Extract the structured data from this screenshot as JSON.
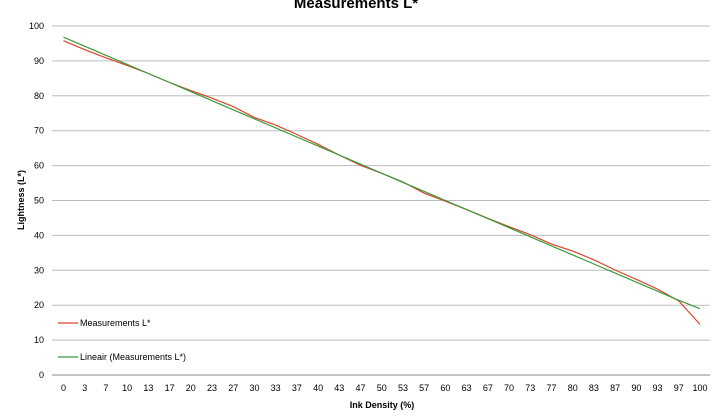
{
  "chart_data": {
    "type": "line",
    "title": "Measurements L*",
    "xlabel": "Ink Density (%)",
    "ylabel": "Lightness (L*)",
    "ylim": [
      0,
      100
    ],
    "yticks": [
      0,
      10,
      20,
      30,
      40,
      50,
      60,
      70,
      80,
      90,
      100
    ],
    "grid": true,
    "legend_position": "bottom-left",
    "categories": [
      "0",
      "3",
      "7",
      "10",
      "13",
      "17",
      "20",
      "23",
      "27",
      "30",
      "33",
      "37",
      "40",
      "43",
      "47",
      "50",
      "53",
      "57",
      "60",
      "63",
      "67",
      "70",
      "73",
      "77",
      "80",
      "83",
      "87",
      "90",
      "93",
      "97",
      "100"
    ],
    "series": [
      {
        "name": "Measurements L*",
        "color": "#d9452b",
        "values": [
          95.8,
          93.2,
          90.9,
          88.7,
          86.4,
          83.8,
          81.5,
          79.3,
          76.9,
          73.8,
          71.6,
          68.9,
          66.1,
          63.0,
          60.1,
          57.8,
          55.3,
          52.1,
          49.8,
          47.4,
          44.9,
          42.5,
          40.2,
          37.5,
          35.5,
          33.0,
          30.1,
          27.4,
          24.6,
          21.2,
          14.5
        ]
      },
      {
        "name": "Lineair (Measurements L*)",
        "color": "#3a9a3a",
        "values": [
          96.8,
          94.2,
          91.6,
          89.0,
          86.4,
          83.8,
          81.2,
          78.6,
          76.0,
          73.4,
          70.8,
          68.2,
          65.6,
          63.0,
          60.4,
          57.8,
          55.2,
          52.6,
          50.0,
          47.4,
          44.8,
          42.2,
          39.6,
          37.0,
          34.4,
          31.8,
          29.2,
          26.6,
          24.0,
          21.4,
          19.0
        ]
      }
    ]
  }
}
